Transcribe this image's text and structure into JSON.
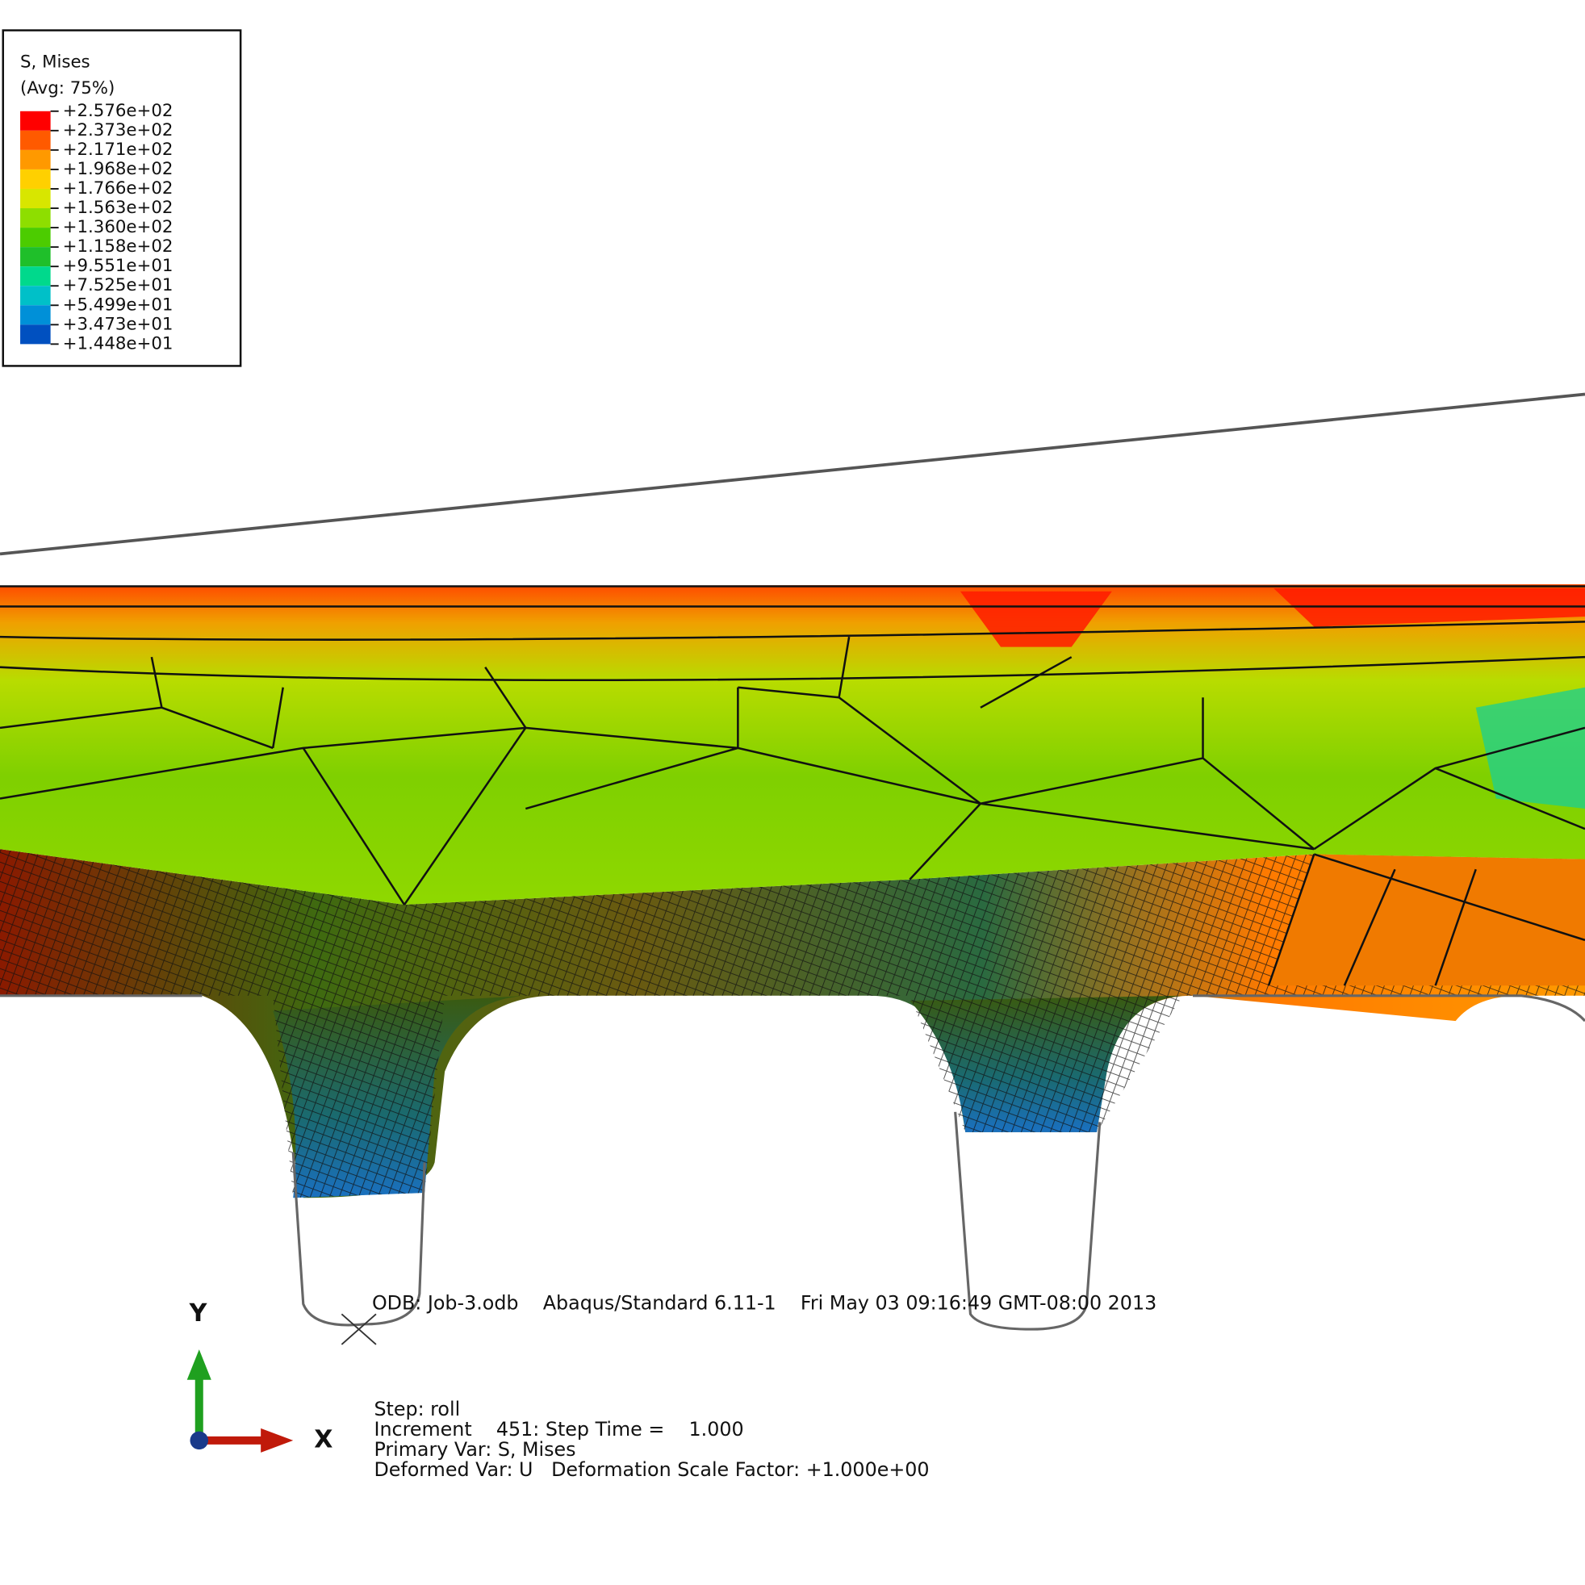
{
  "legend": {
    "title": "S, Mises",
    "subtitle": "(Avg: 75%)",
    "labels": [
      "+2.576e+02",
      "+2.373e+02",
      "+2.171e+02",
      "+1.968e+02",
      "+1.766e+02",
      "+1.563e+02",
      "+1.360e+02",
      "+1.158e+02",
      "+9.551e+01",
      "+7.525e+01",
      "+5.499e+01",
      "+3.473e+01",
      "+1.448e+01"
    ],
    "colors": [
      "#ff0000",
      "#ff5a00",
      "#ff9900",
      "#ffd000",
      "#d8e600",
      "#8ede00",
      "#4ccc00",
      "#1fbf2a",
      "#00d98c",
      "#00c0c8",
      "#0090d8",
      "#0050c0"
    ]
  },
  "triad": {
    "y": "Y",
    "x": "X"
  },
  "info": {
    "odb": "ODB: Job-3.odb    Abaqus/Standard 6.11-1    Fri May 03 09:16:49 GMT-08:00 2013",
    "step": "Step: roll",
    "increment": "Increment    451: Step Time =    1.000",
    "primary": "Primary Var: S, Mises",
    "deformed": "Deformed Var: U   Deformation Scale Factor: +1.000e+00"
  }
}
